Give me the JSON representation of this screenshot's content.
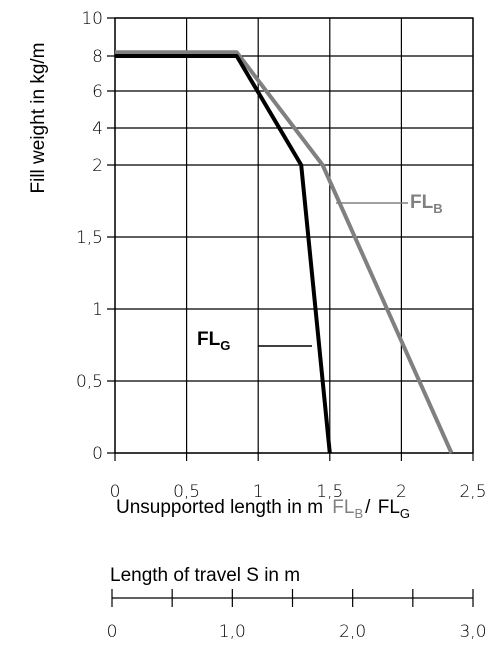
{
  "chart_data": {
    "type": "line",
    "y_axis_label": "Fill weight in kg/m",
    "x_axis_label": "Unsupported length in m",
    "x_axis_label_suffix": {
      "fl_b_main": "FL",
      "fl_b_sub": "B",
      "separator": "/",
      "fl_g_main": "FL",
      "fl_g_sub": "G"
    },
    "y_ticks": [
      "0",
      "0,5",
      "1",
      "1,5",
      "2",
      "4",
      "6",
      "8",
      "10"
    ],
    "x_ticks": [
      "0",
      "0,5",
      "1",
      "1,5",
      "2",
      "2,5"
    ],
    "x_range": [
      0,
      2.5
    ],
    "grid": true,
    "series": [
      {
        "name_main": "FL",
        "name_sub": "G",
        "color": "#000000",
        "points": [
          [
            0,
            8
          ],
          [
            0.85,
            8
          ],
          [
            1.3,
            2
          ],
          [
            1.5,
            0
          ]
        ]
      },
      {
        "name_main": "FL",
        "name_sub": "B",
        "color": "#808080",
        "points": [
          [
            0,
            8.2
          ],
          [
            0.85,
            8.2
          ],
          [
            1.45,
            2
          ],
          [
            2.35,
            0
          ]
        ]
      }
    ],
    "secondary_axis": {
      "title": "Length of travel S in m",
      "tick_labels": [
        "0",
        "1,0",
        "2,0",
        "3,0"
      ],
      "range": [
        0,
        3
      ],
      "minor_step": 0.5
    }
  }
}
